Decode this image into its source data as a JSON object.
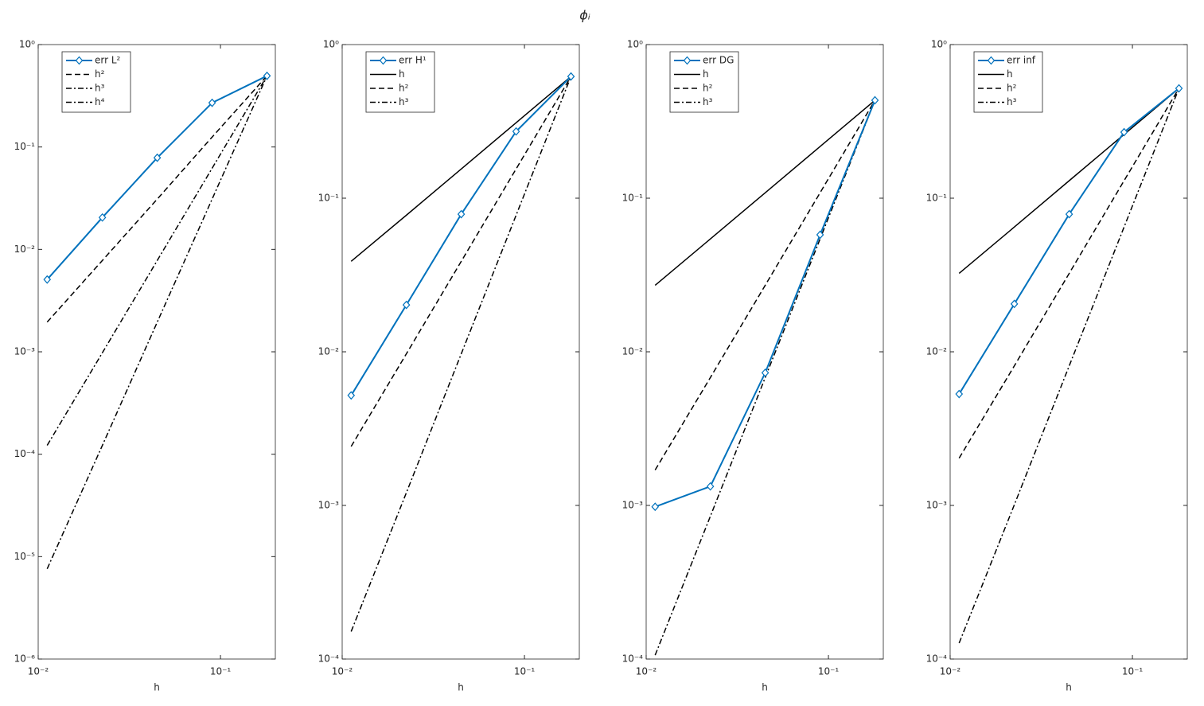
{
  "title": "ϕᵢ",
  "chart_data": [
    {
      "type": "line",
      "xlabel": "h",
      "xscale": "log",
      "yscale": "log",
      "legend": "upper left",
      "x": [
        0.0112,
        0.0225,
        0.045,
        0.09,
        0.18
      ],
      "xlim": [
        0.01,
        0.2
      ],
      "xticks": [
        {
          "value": 0.01,
          "label": "10⁻²"
        },
        {
          "value": 0.1,
          "label": "10⁻¹"
        }
      ],
      "ylim": [
        1e-06,
        1
      ],
      "yticks": [
        {
          "value": 1e-06,
          "label": "10⁻⁶"
        },
        {
          "value": 1e-05,
          "label": "10⁻⁵"
        },
        {
          "value": 0.0001,
          "label": "10⁻⁴"
        },
        {
          "value": 0.001,
          "label": "10⁻³"
        },
        {
          "value": 0.01,
          "label": "10⁻²"
        },
        {
          "value": 0.1,
          "label": "10⁻¹"
        },
        {
          "value": 1,
          "label": "10⁰"
        }
      ],
      "series": [
        {
          "name": "err L²",
          "color": "#0072bd",
          "line_style": "solid",
          "marker": "diamond",
          "values": [
            0.00508,
            0.0205,
            0.0785,
            0.27,
            0.495
          ]
        },
        {
          "name": "h²",
          "color": "#000000",
          "line_style": "dashed",
          "values": [
            0.00195,
            0.0078,
            0.031,
            0.125,
            0.495
          ]
        },
        {
          "name": "h³",
          "color": "#000000",
          "line_style": "dashdot",
          "values": [
            0.000122,
            0.00098,
            0.0078,
            0.062,
            0.495
          ]
        },
        {
          "name": "h⁴",
          "color": "#000000",
          "line_style": "dashdot",
          "values": [
            7.6e-06,
            0.000122,
            0.00195,
            0.031,
            0.495
          ]
        }
      ]
    },
    {
      "type": "line",
      "xlabel": "h",
      "xscale": "log",
      "yscale": "log",
      "legend": "upper left",
      "x": [
        0.0112,
        0.0225,
        0.045,
        0.09,
        0.18
      ],
      "xlim": [
        0.01,
        0.2
      ],
      "xticks": [
        {
          "value": 0.01,
          "label": "10⁻²"
        },
        {
          "value": 0.1,
          "label": "10⁻¹"
        }
      ],
      "ylim": [
        0.0001,
        1
      ],
      "yticks": [
        {
          "value": 0.0001,
          "label": "10⁻⁴"
        },
        {
          "value": 0.001,
          "label": "10⁻³"
        },
        {
          "value": 0.01,
          "label": "10⁻²"
        },
        {
          "value": 0.1,
          "label": "10⁻¹"
        },
        {
          "value": 1,
          "label": "10⁰"
        }
      ],
      "series": [
        {
          "name": "err H¹",
          "color": "#0072bd",
          "line_style": "solid",
          "marker": "diamond",
          "values": [
            0.0052,
            0.0202,
            0.0787,
            0.272,
            0.62
          ]
        },
        {
          "name": "h",
          "color": "#000000",
          "line_style": "solid",
          "values": [
            0.0388,
            0.0775,
            0.155,
            0.31,
            0.62
          ]
        },
        {
          "name": "h²",
          "color": "#000000",
          "line_style": "dashed",
          "values": [
            0.00242,
            0.0097,
            0.0388,
            0.155,
            0.62
          ]
        },
        {
          "name": "h³",
          "color": "#000000",
          "line_style": "dashdot",
          "values": [
            0.000151,
            0.00121,
            0.0097,
            0.0775,
            0.62
          ]
        }
      ]
    },
    {
      "type": "line",
      "xlabel": "h",
      "xscale": "log",
      "yscale": "log",
      "legend": "upper left",
      "x": [
        0.0112,
        0.0225,
        0.045,
        0.09,
        0.18
      ],
      "xlim": [
        0.01,
        0.2
      ],
      "xticks": [
        {
          "value": 0.01,
          "label": "10⁻²"
        },
        {
          "value": 0.1,
          "label": "10⁻¹"
        }
      ],
      "ylim": [
        0.0001,
        1
      ],
      "yticks": [
        {
          "value": 0.0001,
          "label": "10⁻⁴"
        },
        {
          "value": 0.001,
          "label": "10⁻³"
        },
        {
          "value": 0.01,
          "label": "10⁻²"
        },
        {
          "value": 0.1,
          "label": "10⁻¹"
        },
        {
          "value": 1,
          "label": "10⁰"
        }
      ],
      "series": [
        {
          "name": "err DG",
          "color": "#0072bd",
          "line_style": "solid",
          "marker": "diamond",
          "values": [
            0.00098,
            0.00133,
            0.0073,
            0.0578,
            0.434
          ]
        },
        {
          "name": "h",
          "color": "#000000",
          "line_style": "solid",
          "values": [
            0.0271,
            0.0543,
            0.1085,
            0.217,
            0.434
          ]
        },
        {
          "name": "h²",
          "color": "#000000",
          "line_style": "dashed",
          "values": [
            0.0017,
            0.0068,
            0.0271,
            0.1085,
            0.434
          ]
        },
        {
          "name": "h³",
          "color": "#000000",
          "line_style": "dashdot",
          "values": [
            0.000106,
            0.00085,
            0.0068,
            0.0543,
            0.434
          ]
        }
      ]
    },
    {
      "type": "line",
      "xlabel": "h",
      "xscale": "log",
      "yscale": "log",
      "legend": "upper left",
      "x": [
        0.0112,
        0.0225,
        0.045,
        0.09,
        0.18
      ],
      "xlim": [
        0.01,
        0.2
      ],
      "xticks": [
        {
          "value": 0.01,
          "label": "10⁻²"
        },
        {
          "value": 0.1,
          "label": "10⁻¹"
        }
      ],
      "ylim": [
        0.0001,
        1
      ],
      "yticks": [
        {
          "value": 0.0001,
          "label": "10⁻⁴"
        },
        {
          "value": 0.001,
          "label": "10⁻³"
        },
        {
          "value": 0.01,
          "label": "10⁻²"
        },
        {
          "value": 0.1,
          "label": "10⁻¹"
        },
        {
          "value": 1,
          "label": "10⁰"
        }
      ],
      "series": [
        {
          "name": "err inf",
          "color": "#0072bd",
          "line_style": "solid",
          "marker": "diamond",
          "values": [
            0.00531,
            0.0205,
            0.0787,
            0.269,
            0.519
          ]
        },
        {
          "name": "h",
          "color": "#000000",
          "line_style": "solid",
          "values": [
            0.0324,
            0.0649,
            0.13,
            0.26,
            0.519
          ]
        },
        {
          "name": "h²",
          "color": "#000000",
          "line_style": "dashed",
          "values": [
            0.00203,
            0.0081,
            0.0324,
            0.13,
            0.519
          ]
        },
        {
          "name": "h³",
          "color": "#000000",
          "line_style": "dashdot",
          "values": [
            0.000127,
            0.00101,
            0.0081,
            0.0649,
            0.519
          ]
        }
      ]
    }
  ]
}
